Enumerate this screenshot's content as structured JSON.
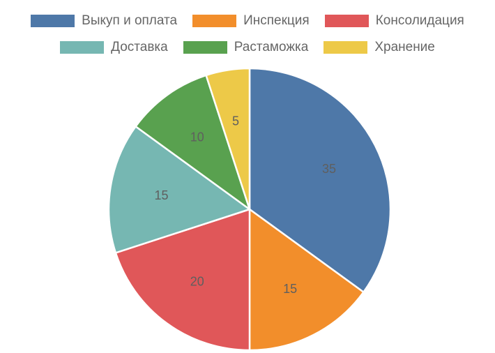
{
  "chart_data": {
    "type": "pie",
    "categories": [
      "Выкуп и оплата",
      "Инспекция",
      "Консолидация",
      "Доставка",
      "Растаможка",
      "Хранение"
    ],
    "values": [
      35,
      15,
      20,
      15,
      10,
      5
    ],
    "colors": [
      "#4e78a8",
      "#f28e2b",
      "#e05759",
      "#76b7b2",
      "#59a14f",
      "#edc948"
    ],
    "legend_position": "top",
    "data_labels": [
      "35",
      "15",
      "20",
      "15",
      "10",
      "5"
    ]
  }
}
